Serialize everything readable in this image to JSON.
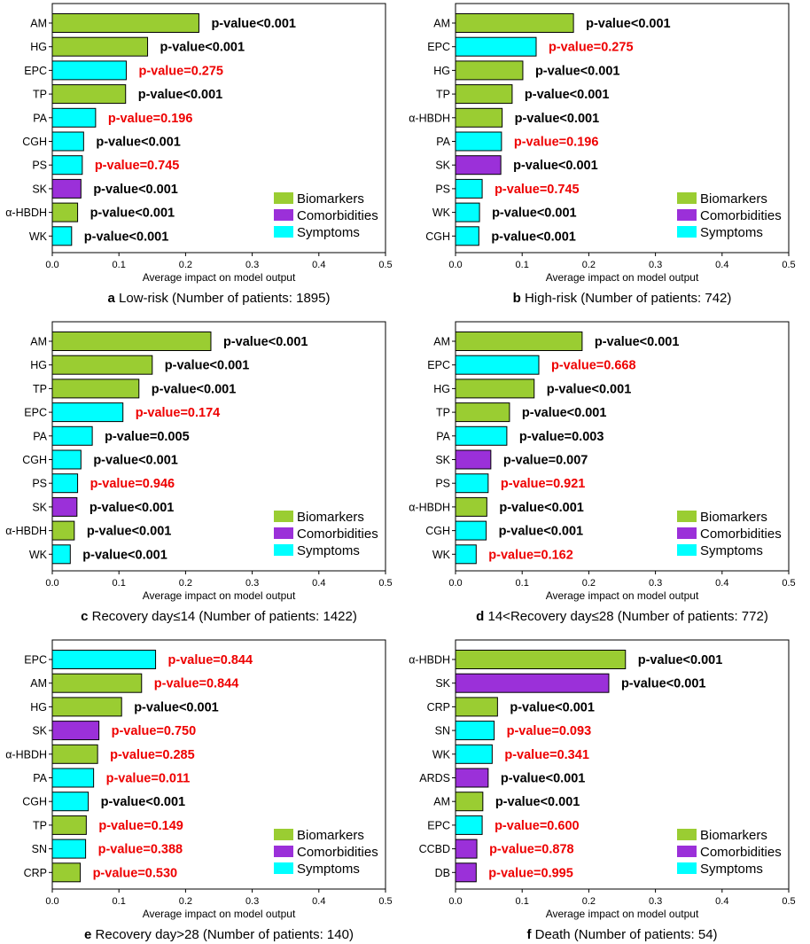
{
  "colors": {
    "Biomarkers": "#9acd32",
    "Comorbidities": "#9b30d9",
    "Symptoms": "#00ffff",
    "sig": "#000000",
    "nonsig": "#ee0000"
  },
  "chart_data": [
    {
      "type": "bar",
      "panel_letter": "a",
      "caption": "Low-risk (Number of patients: 1895)",
      "xlabel": "Average impact on model output",
      "xlim": [
        0,
        0.5
      ],
      "xticks": [
        "0.0",
        "0.1",
        "0.2",
        "0.3",
        "0.4",
        "0.5"
      ],
      "legend": {
        "position": "lower-right",
        "entries": [
          "Biomarkers",
          "Comorbidities",
          "Symptoms"
        ]
      },
      "bars": [
        {
          "label": "AM",
          "value": 0.22,
          "group": "Biomarkers",
          "pvalue": "p-value<0.001",
          "significant": true
        },
        {
          "label": "HG",
          "value": 0.143,
          "group": "Biomarkers",
          "pvalue": "p-value<0.001",
          "significant": true
        },
        {
          "label": "EPC",
          "value": 0.111,
          "group": "Symptoms",
          "pvalue": "p-value=0.275",
          "significant": false
        },
        {
          "label": "TP",
          "value": 0.11,
          "group": "Biomarkers",
          "pvalue": "p-value<0.001",
          "significant": true
        },
        {
          "label": "PA",
          "value": 0.065,
          "group": "Symptoms",
          "pvalue": "p-value=0.196",
          "significant": false
        },
        {
          "label": "CGH",
          "value": 0.047,
          "group": "Symptoms",
          "pvalue": "p-value<0.001",
          "significant": true
        },
        {
          "label": "PS",
          "value": 0.045,
          "group": "Symptoms",
          "pvalue": "p-value=0.745",
          "significant": false
        },
        {
          "label": "SK",
          "value": 0.043,
          "group": "Comorbidities",
          "pvalue": "p-value<0.001",
          "significant": true
        },
        {
          "label": "α-HBDH",
          "value": 0.038,
          "group": "Biomarkers",
          "pvalue": "p-value<0.001",
          "significant": true
        },
        {
          "label": "WK",
          "value": 0.029,
          "group": "Symptoms",
          "pvalue": "p-value<0.001",
          "significant": true
        }
      ]
    },
    {
      "type": "bar",
      "panel_letter": "b",
      "caption": "High-risk (Number of patients: 742)",
      "xlabel": "Average impact on model output",
      "xlim": [
        0,
        0.5
      ],
      "xticks": [
        "0.0",
        "0.1",
        "0.2",
        "0.3",
        "0.4",
        "0.5"
      ],
      "legend": {
        "position": "lower-right",
        "entries": [
          "Biomarkers",
          "Comorbidities",
          "Symptoms"
        ]
      },
      "bars": [
        {
          "label": "AM",
          "value": 0.177,
          "group": "Biomarkers",
          "pvalue": "p-value<0.001",
          "significant": true
        },
        {
          "label": "EPC",
          "value": 0.121,
          "group": "Symptoms",
          "pvalue": "p-value=0.275",
          "significant": false
        },
        {
          "label": "HG",
          "value": 0.101,
          "group": "Biomarkers",
          "pvalue": "p-value<0.001",
          "significant": true
        },
        {
          "label": "TP",
          "value": 0.085,
          "group": "Biomarkers",
          "pvalue": "p-value<0.001",
          "significant": true
        },
        {
          "label": "α-HBDH",
          "value": 0.07,
          "group": "Biomarkers",
          "pvalue": "p-value<0.001",
          "significant": true
        },
        {
          "label": "PA",
          "value": 0.069,
          "group": "Symptoms",
          "pvalue": "p-value=0.196",
          "significant": false
        },
        {
          "label": "SK",
          "value": 0.068,
          "group": "Comorbidities",
          "pvalue": "p-value<0.001",
          "significant": true
        },
        {
          "label": "PS",
          "value": 0.04,
          "group": "Symptoms",
          "pvalue": "p-value=0.745",
          "significant": false
        },
        {
          "label": "WK",
          "value": 0.036,
          "group": "Symptoms",
          "pvalue": "p-value<0.001",
          "significant": true
        },
        {
          "label": "CGH",
          "value": 0.035,
          "group": "Symptoms",
          "pvalue": "p-value<0.001",
          "significant": true
        }
      ]
    },
    {
      "type": "bar",
      "panel_letter": "c",
      "caption": "Recovery day≤14 (Number of patients: 1422)",
      "xlabel": "Average impact on model output",
      "xlim": [
        0,
        0.5
      ],
      "xticks": [
        "0.0",
        "0.1",
        "0.2",
        "0.3",
        "0.4",
        "0.5"
      ],
      "legend": {
        "position": "lower-right",
        "entries": [
          "Biomarkers",
          "Comorbidities",
          "Symptoms"
        ]
      },
      "bars": [
        {
          "label": "AM",
          "value": 0.238,
          "group": "Biomarkers",
          "pvalue": "p-value<0.001",
          "significant": true
        },
        {
          "label": "HG",
          "value": 0.15,
          "group": "Biomarkers",
          "pvalue": "p-value<0.001",
          "significant": true
        },
        {
          "label": "TP",
          "value": 0.13,
          "group": "Biomarkers",
          "pvalue": "p-value<0.001",
          "significant": true
        },
        {
          "label": "EPC",
          "value": 0.106,
          "group": "Symptoms",
          "pvalue": "p-value=0.174",
          "significant": false
        },
        {
          "label": "PA",
          "value": 0.06,
          "group": "Symptoms",
          "pvalue": "p-value=0.005",
          "significant": true
        },
        {
          "label": "CGH",
          "value": 0.043,
          "group": "Symptoms",
          "pvalue": "p-value<0.001",
          "significant": true
        },
        {
          "label": "PS",
          "value": 0.038,
          "group": "Symptoms",
          "pvalue": "p-value=0.946",
          "significant": false
        },
        {
          "label": "SK",
          "value": 0.037,
          "group": "Comorbidities",
          "pvalue": "p-value<0.001",
          "significant": true
        },
        {
          "label": "α-HBDH",
          "value": 0.033,
          "group": "Biomarkers",
          "pvalue": "p-value<0.001",
          "significant": true
        },
        {
          "label": "WK",
          "value": 0.027,
          "group": "Symptoms",
          "pvalue": "p-value<0.001",
          "significant": true
        }
      ]
    },
    {
      "type": "bar",
      "panel_letter": "d",
      "caption": "14<Recovery day≤28 (Number of patients: 772)",
      "xlabel": "Average impact on model output",
      "xlim": [
        0,
        0.5
      ],
      "xticks": [
        "0.0",
        "0.1",
        "0.2",
        "0.3",
        "0.4",
        "0.5"
      ],
      "legend": {
        "position": "lower-right",
        "entries": [
          "Biomarkers",
          "Comorbidities",
          "Symptoms"
        ]
      },
      "bars": [
        {
          "label": "AM",
          "value": 0.19,
          "group": "Biomarkers",
          "pvalue": "p-value<0.001",
          "significant": true
        },
        {
          "label": "EPC",
          "value": 0.125,
          "group": "Symptoms",
          "pvalue": "p-value=0.668",
          "significant": false
        },
        {
          "label": "HG",
          "value": 0.118,
          "group": "Biomarkers",
          "pvalue": "p-value<0.001",
          "significant": true
        },
        {
          "label": "TP",
          "value": 0.081,
          "group": "Biomarkers",
          "pvalue": "p-value<0.001",
          "significant": true
        },
        {
          "label": "PA",
          "value": 0.077,
          "group": "Symptoms",
          "pvalue": "p-value=0.003",
          "significant": true
        },
        {
          "label": "SK",
          "value": 0.053,
          "group": "Comorbidities",
          "pvalue": "p-value=0.007",
          "significant": true
        },
        {
          "label": "PS",
          "value": 0.049,
          "group": "Symptoms",
          "pvalue": "p-value=0.921",
          "significant": false
        },
        {
          "label": "α-HBDH",
          "value": 0.047,
          "group": "Biomarkers",
          "pvalue": "p-value<0.001",
          "significant": true
        },
        {
          "label": "CGH",
          "value": 0.046,
          "group": "Symptoms",
          "pvalue": "p-value<0.001",
          "significant": true
        },
        {
          "label": "WK",
          "value": 0.031,
          "group": "Symptoms",
          "pvalue": "p-value=0.162",
          "significant": false
        }
      ]
    },
    {
      "type": "bar",
      "panel_letter": "e",
      "caption": "Recovery day>28 (Number of patients: 140)",
      "xlabel": "Average impact on model output",
      "xlim": [
        0,
        0.5
      ],
      "xticks": [
        "0.0",
        "0.1",
        "0.2",
        "0.3",
        "0.4",
        "0.5"
      ],
      "legend": {
        "position": "lower-right",
        "entries": [
          "Biomarkers",
          "Comorbidities",
          "Symptoms"
        ]
      },
      "bars": [
        {
          "label": "EPC",
          "value": 0.155,
          "group": "Symptoms",
          "pvalue": "p-value=0.844",
          "significant": false
        },
        {
          "label": "AM",
          "value": 0.134,
          "group": "Biomarkers",
          "pvalue": "p-value=0.844",
          "significant": false
        },
        {
          "label": "HG",
          "value": 0.104,
          "group": "Biomarkers",
          "pvalue": "p-value<0.001",
          "significant": true
        },
        {
          "label": "SK",
          "value": 0.07,
          "group": "Comorbidities",
          "pvalue": "p-value=0.750",
          "significant": false
        },
        {
          "label": "α-HBDH",
          "value": 0.068,
          "group": "Biomarkers",
          "pvalue": "p-value=0.285",
          "significant": false
        },
        {
          "label": "PA",
          "value": 0.062,
          "group": "Symptoms",
          "pvalue": "p-value=0.011",
          "significant": false
        },
        {
          "label": "CGH",
          "value": 0.054,
          "group": "Symptoms",
          "pvalue": "p-value<0.001",
          "significant": true
        },
        {
          "label": "TP",
          "value": 0.051,
          "group": "Biomarkers",
          "pvalue": "p-value=0.149",
          "significant": false
        },
        {
          "label": "SN",
          "value": 0.05,
          "group": "Symptoms",
          "pvalue": "p-value=0.388",
          "significant": false
        },
        {
          "label": "CRP",
          "value": 0.042,
          "group": "Biomarkers",
          "pvalue": "p-value=0.530",
          "significant": false
        }
      ]
    },
    {
      "type": "bar",
      "panel_letter": "f",
      "caption": "Death (Number of patients: 54)",
      "xlabel": "Average impact on model output",
      "xlim": [
        0,
        0.5
      ],
      "xticks": [
        "0.0",
        "0.1",
        "0.2",
        "0.3",
        "0.4",
        "0.5"
      ],
      "legend": {
        "position": "lower-right",
        "entries": [
          "Biomarkers",
          "Comorbidities",
          "Symptoms"
        ]
      },
      "bars": [
        {
          "label": "α-HBDH",
          "value": 0.255,
          "group": "Biomarkers",
          "pvalue": "p-value<0.001",
          "significant": true
        },
        {
          "label": "SK",
          "value": 0.23,
          "group": "Comorbidities",
          "pvalue": "p-value<0.001",
          "significant": true
        },
        {
          "label": "CRP",
          "value": 0.063,
          "group": "Biomarkers",
          "pvalue": "p-value<0.001",
          "significant": true
        },
        {
          "label": "SN",
          "value": 0.058,
          "group": "Symptoms",
          "pvalue": "p-value=0.093",
          "significant": false
        },
        {
          "label": "WK",
          "value": 0.055,
          "group": "Symptoms",
          "pvalue": "p-value=0.341",
          "significant": false
        },
        {
          "label": "ARDS",
          "value": 0.049,
          "group": "Comorbidities",
          "pvalue": "p-value<0.001",
          "significant": true
        },
        {
          "label": "AM",
          "value": 0.041,
          "group": "Biomarkers",
          "pvalue": "p-value<0.001",
          "significant": true
        },
        {
          "label": "EPC",
          "value": 0.04,
          "group": "Symptoms",
          "pvalue": "p-value=0.600",
          "significant": false
        },
        {
          "label": "CCBD",
          "value": 0.032,
          "group": "Comorbidities",
          "pvalue": "p-value=0.878",
          "significant": false
        },
        {
          "label": "DB",
          "value": 0.031,
          "group": "Comorbidities",
          "pvalue": "p-value=0.995",
          "significant": false
        }
      ]
    }
  ]
}
